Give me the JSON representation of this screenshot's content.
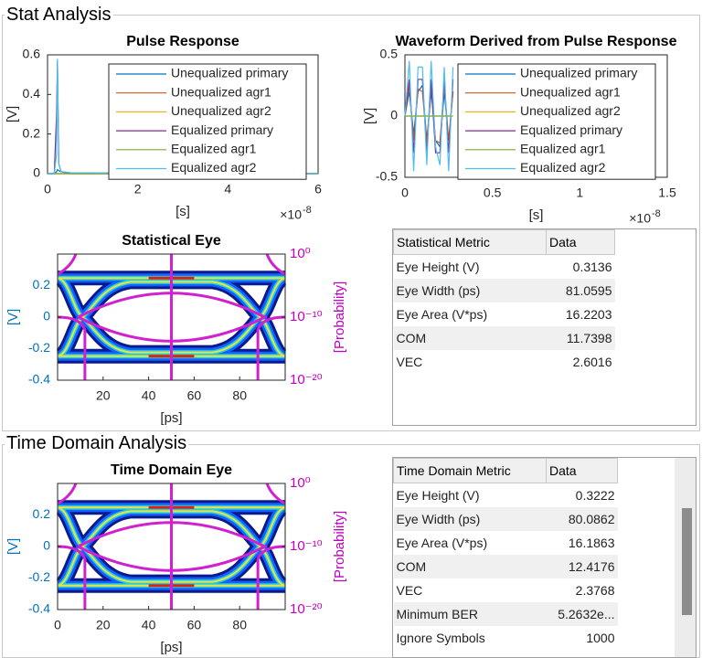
{
  "stat_analysis": {
    "title": "Stat Analysis",
    "pulse_response": {
      "type": "line",
      "title": "Pulse Response",
      "xlabel": "[s]",
      "ylabel": "[V]",
      "x_multiplier": "×10",
      "x_exponent": "-8",
      "xlim": [
        0,
        6e-08
      ],
      "xticks": [
        0,
        {
          "value": 2e-08,
          "label": "2"
        },
        {
          "value": 4e-08,
          "label": "4"
        },
        {
          "value": 6e-08,
          "label": "6"
        }
      ],
      "ylim": [
        0,
        0.6
      ],
      "yticks": [
        0,
        0.2,
        0.4,
        0.6
      ],
      "legend": "northeast",
      "x": [
        0,
        1.5e-09,
        2e-09,
        2.2e-09,
        2.5e-09,
        3e-09,
        5e-09,
        6e-08
      ],
      "series": [
        {
          "name": "Unequalized primary",
          "color": "#0072bd",
          "values": [
            0,
            0,
            0.01,
            0.02,
            0.015,
            0.01,
            0.005,
            0
          ]
        },
        {
          "name": "Unequalized agr1",
          "color": "#d95319",
          "values": [
            0,
            0,
            0,
            0,
            0,
            0,
            0,
            0
          ]
        },
        {
          "name": "Unequalized agr2",
          "color": "#edb120",
          "values": [
            0,
            0,
            0,
            0,
            0,
            0,
            0,
            0
          ]
        },
        {
          "name": "Equalized primary",
          "color": "#7e2f8e",
          "values": [
            0,
            0,
            0.3,
            0.57,
            0.05,
            0.01,
            0,
            0
          ]
        },
        {
          "name": "Equalized agr1",
          "color": "#77ac30",
          "values": [
            0,
            0,
            0,
            0,
            0,
            0,
            0,
            0
          ]
        },
        {
          "name": "Equalized agr2",
          "color": "#4dbeee",
          "values": [
            0,
            0,
            0.1,
            0.58,
            0.05,
            0.01,
            0.005,
            0
          ]
        }
      ]
    },
    "waveform": {
      "type": "line",
      "title": "Waveform Derived from Pulse Response",
      "xlabel": "[s]",
      "ylabel": "[V]",
      "x_multiplier": "×10",
      "x_exponent": "-8",
      "xlim": [
        0,
        1.5e-08
      ],
      "xticks": [
        0,
        {
          "value": 5e-09,
          "label": "0.5"
        },
        {
          "value": 1e-08,
          "label": "1"
        },
        {
          "value": 1.5e-08,
          "label": "1.5"
        }
      ],
      "ylim": [
        -0.5,
        0.5
      ],
      "yticks": [
        -0.5,
        0,
        0.5
      ],
      "legend": "northeast",
      "x": [
        0,
        2.5e-10,
        5e-10,
        7.5e-10,
        1e-09,
        1.25e-09,
        1.5e-09,
        1.75e-09,
        2e-09,
        2.25e-09,
        2.5e-09,
        2.75e-09
      ],
      "series": [
        {
          "name": "Unequalized primary",
          "color": "#0072bd",
          "values": [
            0,
            0.2,
            -0.15,
            0.2,
            0.25,
            -0.2,
            0.2,
            -0.2,
            -0.25,
            0.2,
            -0.2,
            0.2
          ]
        },
        {
          "name": "Unequalized agr1",
          "color": "#d95319",
          "values": [
            0,
            0.25,
            -0.2,
            0.22,
            0.2,
            -0.22,
            0.25,
            -0.2,
            -0.22,
            0.25,
            -0.2,
            0.2
          ]
        },
        {
          "name": "Unequalized agr2",
          "color": "#edb120",
          "values": [
            0,
            0,
            0,
            0,
            0,
            0,
            0,
            0,
            0,
            0,
            0,
            0
          ]
        },
        {
          "name": "Equalized primary",
          "color": "#7e2f8e",
          "values": [
            0,
            0.3,
            -0.3,
            0.3,
            0.3,
            -0.3,
            0.3,
            -0.3,
            -0.3,
            0.3,
            -0.3,
            0.3
          ]
        },
        {
          "name": "Equalized agr1",
          "color": "#77ac30",
          "values": [
            0,
            0,
            0,
            0,
            0,
            0,
            0,
            0,
            0,
            0,
            0,
            0
          ]
        },
        {
          "name": "Equalized agr2",
          "color": "#4dbeee",
          "values": [
            0,
            0.45,
            -0.45,
            0.4,
            0.4,
            -0.4,
            0.45,
            -0.25,
            -0.4,
            0.4,
            -0.45,
            0.4
          ]
        }
      ]
    },
    "statistical_eye": {
      "type": "eye",
      "title": "Statistical Eye",
      "xlabel": "[ps]",
      "ylabel": "[V]",
      "y2label": "[Probability]",
      "xlim": [
        0,
        100
      ],
      "xticks": [
        20,
        40,
        60,
        80
      ],
      "ylim": [
        -0.4,
        0.4
      ],
      "yticks": [
        -0.4,
        -0.2,
        0,
        0.2
      ],
      "y2_scale": "log",
      "y2lim": [
        1e-20,
        1
      ],
      "y2ticks": [
        {
          "value": 1,
          "label": "10⁰"
        },
        {
          "value": 1e-10,
          "label": "10⁻¹⁰"
        },
        {
          "value": 1e-20,
          "label": "10⁻²⁰"
        }
      ],
      "ycolor": "#0072bd",
      "y2color": "#c000c0"
    },
    "metrics_table": {
      "header": [
        "Statistical Metric",
        "Data"
      ],
      "rows": [
        [
          "Eye Height (V)",
          "0.3136"
        ],
        [
          "Eye Width (ps)",
          "81.0595"
        ],
        [
          "Eye Area (V*ps)",
          "16.2203"
        ],
        [
          "COM",
          "11.7398"
        ],
        [
          "VEC",
          "2.6016"
        ]
      ]
    }
  },
  "time_domain_analysis": {
    "title": "Time Domain Analysis",
    "time_domain_eye": {
      "type": "eye",
      "title": "Time Domain Eye",
      "xlabel": "[ps]",
      "ylabel": "[V]",
      "y2label": "[Probability]",
      "xlim": [
        0,
        100
      ],
      "xticks": [
        0,
        20,
        40,
        60,
        80
      ],
      "ylim": [
        -0.4,
        0.4
      ],
      "yticks": [
        -0.4,
        -0.2,
        0,
        0.2
      ],
      "y2_scale": "log",
      "y2lim": [
        1e-20,
        1
      ],
      "y2ticks": [
        {
          "value": 1,
          "label": "10⁰"
        },
        {
          "value": 1e-10,
          "label": "10⁻¹⁰"
        },
        {
          "value": 1e-20,
          "label": "10⁻²⁰"
        }
      ],
      "ycolor": "#0072bd",
      "y2color": "#c000c0"
    },
    "metrics_table": {
      "header": [
        "Time Domain Metric",
        "Data"
      ],
      "rows": [
        [
          "Eye Height (V)",
          "0.3222"
        ],
        [
          "Eye Width (ps)",
          "80.0862"
        ],
        [
          "Eye Area (V*ps)",
          "16.1863"
        ],
        [
          "COM",
          "12.4176"
        ],
        [
          "VEC",
          "2.3768"
        ],
        [
          "Minimum BER",
          "5.2632e..."
        ],
        [
          "Ignore Symbols",
          "1000"
        ]
      ]
    }
  }
}
